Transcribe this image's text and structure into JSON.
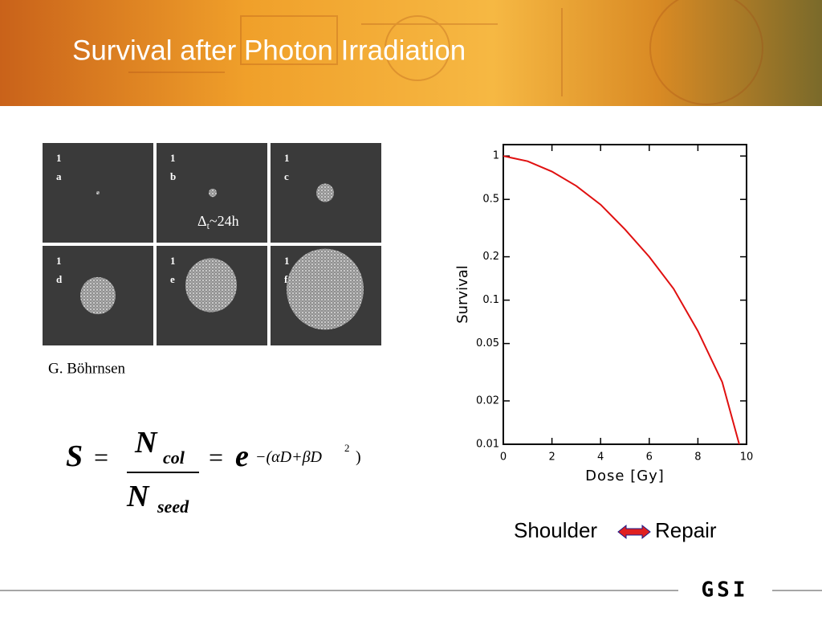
{
  "header": {
    "title": "Survival after Photon Irradiation"
  },
  "panels": [
    {
      "number": "1",
      "letter": "a"
    },
    {
      "number": "1",
      "letter": "b"
    },
    {
      "number": "1",
      "letter": "c"
    },
    {
      "number": "1",
      "letter": "d"
    },
    {
      "number": "1",
      "letter": "e"
    },
    {
      "number": "1",
      "letter": "f"
    }
  ],
  "interval": {
    "symbol": "Δ",
    "sub": "t",
    "rest": "~24h"
  },
  "credit": "G. Böhrnsen",
  "formula": {
    "lhs": "S",
    "eq1": "=",
    "num": "N",
    "num_sub": "col",
    "den": "N",
    "den_sub": "seed",
    "eq2": "=",
    "base": "e",
    "exp": "−(αD+βD",
    "exp_sq": "2",
    "exp_end": ")"
  },
  "chart_data": {
    "type": "line",
    "xlabel": "Dose [Gy]",
    "ylabel": "Survival",
    "x": [
      0,
      1,
      2,
      3,
      4,
      5,
      6,
      7,
      8,
      9,
      9.7
    ],
    "values": [
      1,
      0.92,
      0.78,
      0.62,
      0.46,
      0.31,
      0.2,
      0.12,
      0.061,
      0.027,
      0.01
    ],
    "color": "#e01010",
    "xlim": [
      0,
      10
    ],
    "xticks": [
      0,
      2,
      4,
      6,
      8,
      10
    ],
    "ylim": [
      0.01,
      1.2
    ],
    "yticks": [
      1,
      0.5,
      0.2,
      0.1,
      0.05,
      0.02,
      0.01
    ],
    "log_y": true
  },
  "note": {
    "left": "Shoulder",
    "right": "Repair"
  },
  "logo": "GSI"
}
